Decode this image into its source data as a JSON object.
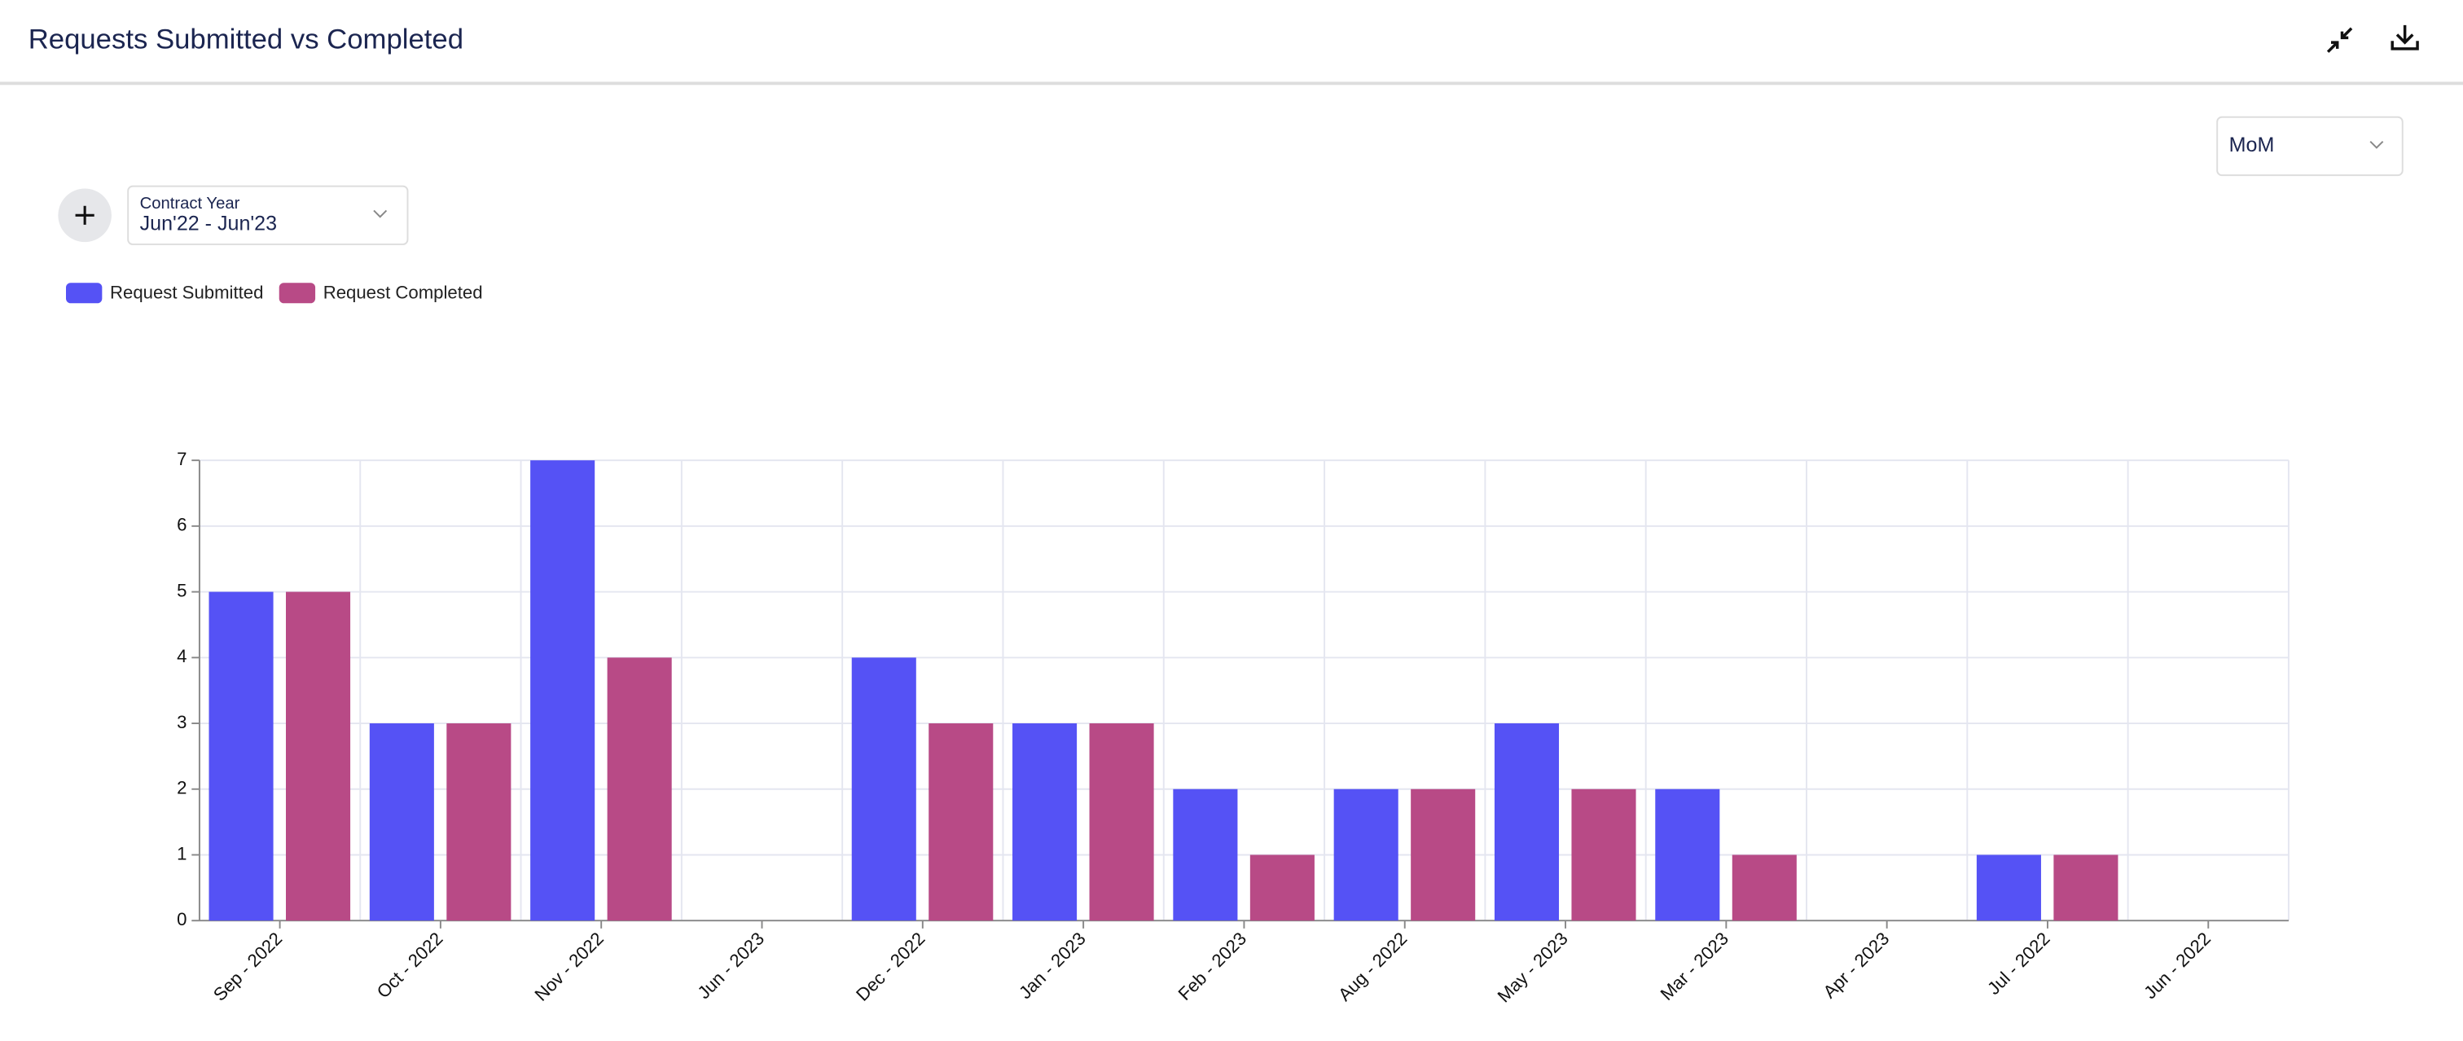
{
  "header": {
    "title": "Requests Submitted vs Completed"
  },
  "controls": {
    "period": "MoM",
    "filter_label": "Contract Year",
    "filter_value": "Jun'22 - Jun'23"
  },
  "chart_data": {
    "type": "bar",
    "categories": [
      "Sep - 2022",
      "Oct - 2022",
      "Nov - 2022",
      "Jun - 2023",
      "Dec - 2022",
      "Jan - 2023",
      "Feb - 2023",
      "Aug - 2022",
      "May - 2023",
      "Mar - 2023",
      "Apr - 2023",
      "Jul - 2022",
      "Jun - 2022"
    ],
    "series": [
      {
        "name": "Request Submitted",
        "color": "#5552f5",
        "values": [
          5,
          3,
          7,
          0,
          4,
          3,
          2,
          2,
          3,
          2,
          0,
          1,
          0
        ]
      },
      {
        "name": "Request Completed",
        "color": "#b84a86",
        "values": [
          5,
          3,
          4,
          0,
          3,
          3,
          1,
          2,
          2,
          1,
          0,
          1,
          0
        ]
      }
    ],
    "ylim": [
      0,
      7
    ],
    "yticks": [
      0,
      1,
      2,
      3,
      4,
      5,
      6,
      7
    ],
    "grid": true
  }
}
